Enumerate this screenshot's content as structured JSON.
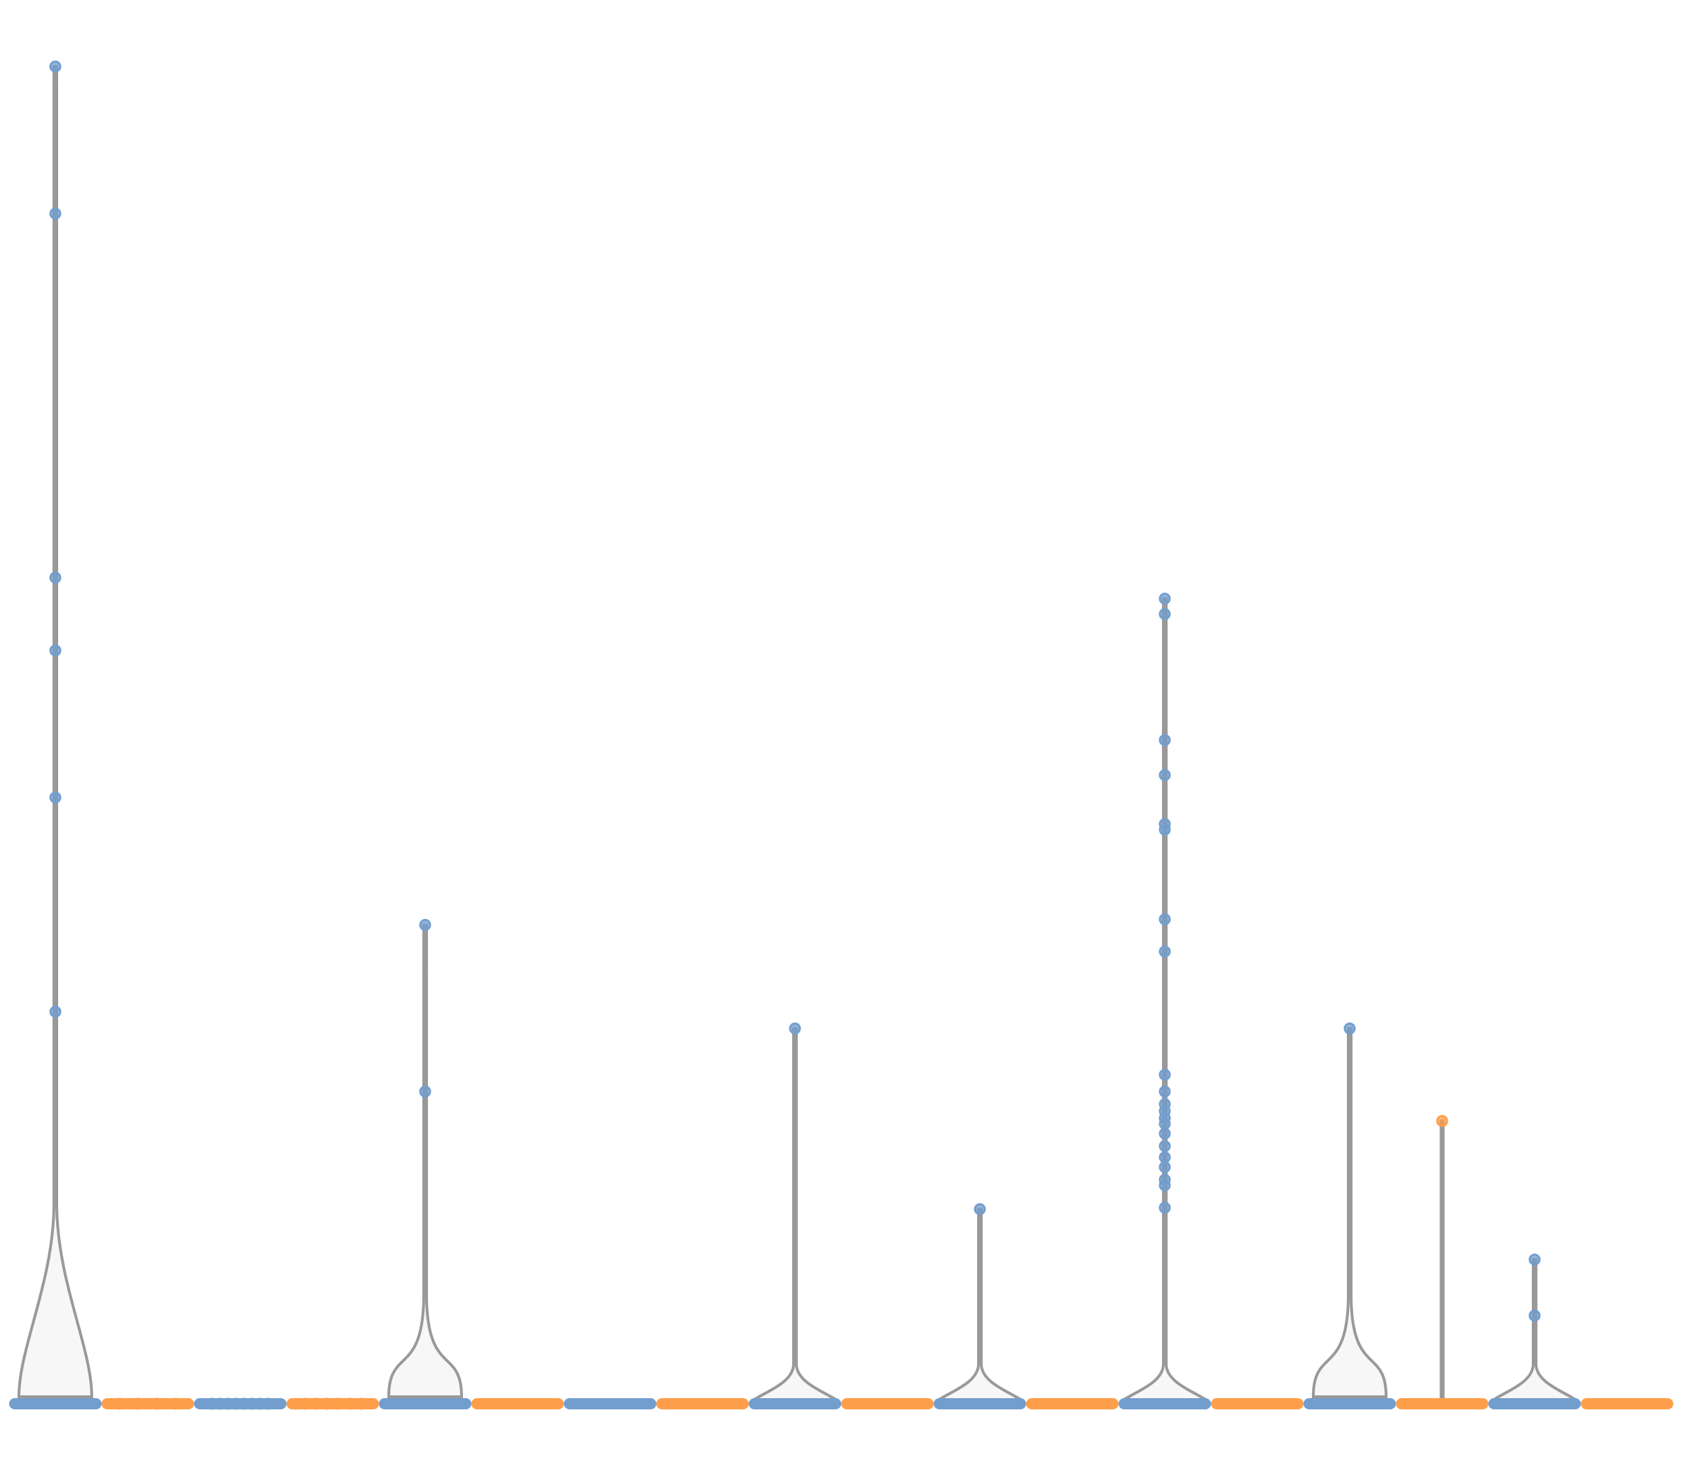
{
  "chart_data": {
    "type": "violin",
    "title": "",
    "xlabel": "",
    "ylabel": "",
    "ylim": [
      0,
      100
    ],
    "colors": {
      "blue": "#729ece",
      "orange": "#ff9e4a",
      "violin_line": "#999999",
      "violin_fill": "#f7f7f7"
    },
    "groups": [
      {
        "color": "blue",
        "violin": "wide",
        "max": 95.5,
        "points": [
          95.5,
          85,
          59,
          53.8,
          43.3,
          28
        ]
      },
      {
        "color": "orange",
        "violin": "flat",
        "max": 0,
        "points": [
          0,
          0,
          0,
          0
        ]
      },
      {
        "color": "blue",
        "violin": "flat",
        "max": 0,
        "points": [
          0,
          0,
          0,
          0,
          0,
          0,
          0,
          0
        ]
      },
      {
        "color": "orange",
        "violin": "flat",
        "max": 0,
        "points": [
          0,
          0,
          0,
          0,
          0,
          0
        ]
      },
      {
        "color": "blue",
        "violin": "wide",
        "max": 34.2,
        "points": [
          34.2,
          22.3
        ]
      },
      {
        "color": "orange",
        "violin": "none",
        "max": 0,
        "points": []
      },
      {
        "color": "blue",
        "violin": "none",
        "max": 0,
        "points": []
      },
      {
        "color": "orange",
        "violin": "none",
        "max": 0,
        "points": []
      },
      {
        "color": "blue",
        "violin": "narrow",
        "max": 26.8,
        "points": [
          26.8
        ]
      },
      {
        "color": "orange",
        "violin": "none",
        "max": 0,
        "points": []
      },
      {
        "color": "blue",
        "violin": "narrow",
        "max": 13.9,
        "points": [
          13.9
        ]
      },
      {
        "color": "orange",
        "violin": "none",
        "max": 0,
        "points": []
      },
      {
        "color": "blue",
        "violin": "narrow",
        "max": 57.5,
        "points": [
          57.5,
          56.4,
          47.4,
          44.9,
          41.4,
          41.0,
          34.6,
          32.3,
          23.5,
          22.3,
          21.4,
          20.9,
          20.4,
          20.0,
          19.3,
          18.4,
          17.6,
          16.9,
          16.0,
          15.6,
          14.0
        ]
      },
      {
        "color": "orange",
        "violin": "none",
        "max": 0,
        "points": []
      },
      {
        "color": "blue",
        "violin": "wide",
        "max": 26.8,
        "points": [
          26.8
        ]
      },
      {
        "color": "orange",
        "violin": "line",
        "max": 20.2,
        "points": [
          20.2
        ]
      },
      {
        "color": "blue",
        "violin": "narrow",
        "max": 10.3,
        "points": [
          10.3,
          6.3
        ]
      },
      {
        "color": "orange",
        "violin": "none",
        "max": 0,
        "points": []
      }
    ]
  }
}
